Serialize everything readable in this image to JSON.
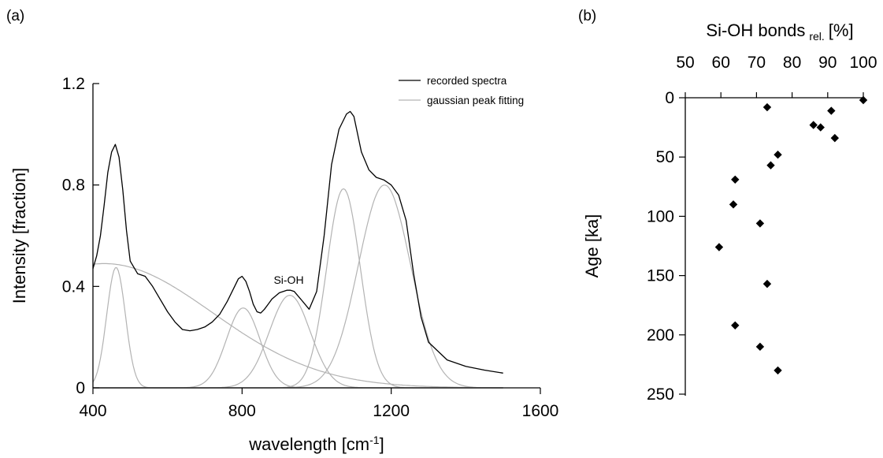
{
  "chart_data": [
    {
      "panel": "(a)",
      "type": "line",
      "xlabel": "wavelength [cm",
      "xlabel_sup": "-1",
      "xlabel_end": "]",
      "ylabel": "Intensity [fraction]",
      "xlim": [
        400,
        1600
      ],
      "ylim": [
        0,
        1.2
      ],
      "xticks": [
        400,
        800,
        1200,
        1600
      ],
      "yticks": [
        0,
        0.4,
        0.8,
        1.2
      ],
      "ytick_labels": [
        "0",
        "0.4",
        "0.8",
        "1.2"
      ],
      "legend_position": "top-right",
      "legend": [
        {
          "label": "recorded spectra",
          "color": "#000000"
        },
        {
          "label": "gaussian peak fitting",
          "color": "#b3b3b3"
        }
      ],
      "annotation": {
        "text": "Si-OH",
        "x": 925,
        "y": 0.41
      },
      "series": [
        {
          "name": "recorded spectra",
          "color": "#000000",
          "x": [
            400,
            410,
            420,
            430,
            440,
            450,
            460,
            470,
            480,
            490,
            500,
            520,
            540,
            560,
            580,
            600,
            620,
            640,
            660,
            680,
            700,
            720,
            740,
            760,
            780,
            790,
            800,
            810,
            820,
            830,
            840,
            850,
            860,
            870,
            880,
            900,
            920,
            930,
            940,
            960,
            980,
            1000,
            1020,
            1040,
            1060,
            1080,
            1090,
            1100,
            1120,
            1140,
            1160,
            1180,
            1200,
            1220,
            1240,
            1260,
            1280,
            1300,
            1350,
            1400,
            1450,
            1500
          ],
          "y": [
            0.47,
            0.52,
            0.6,
            0.72,
            0.85,
            0.93,
            0.96,
            0.91,
            0.78,
            0.62,
            0.5,
            0.45,
            0.44,
            0.4,
            0.35,
            0.3,
            0.26,
            0.23,
            0.225,
            0.23,
            0.24,
            0.26,
            0.29,
            0.34,
            0.4,
            0.43,
            0.44,
            0.42,
            0.38,
            0.33,
            0.3,
            0.295,
            0.31,
            0.33,
            0.35,
            0.375,
            0.385,
            0.385,
            0.38,
            0.345,
            0.31,
            0.38,
            0.6,
            0.88,
            1.02,
            1.08,
            1.09,
            1.07,
            0.93,
            0.86,
            0.83,
            0.82,
            0.8,
            0.76,
            0.66,
            0.45,
            0.28,
            0.18,
            0.11,
            0.085,
            0.07,
            0.058
          ]
        },
        {
          "name": "",
          "color": "#b3b3b3",
          "gaussian": {
            "center": 430,
            "amplitude": 0.49,
            "sigma": 290
          }
        },
        {
          "name": "",
          "color": "#b3b3b3",
          "gaussian": {
            "center": 462,
            "amplitude": 0.475,
            "sigma": 25
          }
        },
        {
          "name": "",
          "color": "#b3b3b3",
          "gaussian": {
            "center": 803,
            "amplitude": 0.315,
            "sigma": 45
          }
        },
        {
          "name": "",
          "color": "#b3b3b3",
          "gaussian": {
            "center": 928,
            "amplitude": 0.365,
            "sigma": 55
          }
        },
        {
          "name": "",
          "color": "#b3b3b3",
          "gaussian": {
            "center": 1072,
            "amplitude": 0.785,
            "sigma": 45
          }
        },
        {
          "name": "",
          "color": "#b3b3b3",
          "gaussian": {
            "center": 1182,
            "amplitude": 0.8,
            "sigma": 70
          }
        }
      ]
    },
    {
      "panel": "(b)",
      "type": "scatter",
      "xlabel": "Si-OH bonds",
      "xlabel_sub": "rel.",
      "xlabel_end": "[%]",
      "ylabel": "Age [ka]",
      "xlim": [
        50,
        100
      ],
      "ylim": [
        0,
        250
      ],
      "y_inverted": true,
      "xticks": [
        50,
        60,
        70,
        80,
        90,
        100
      ],
      "yticks": [
        0,
        50,
        100,
        150,
        200,
        250
      ],
      "marker": "diamond",
      "color": "#000000",
      "points": [
        {
          "x": 100,
          "y": 2
        },
        {
          "x": 73,
          "y": 8
        },
        {
          "x": 91,
          "y": 11
        },
        {
          "x": 86,
          "y": 23
        },
        {
          "x": 88,
          "y": 25
        },
        {
          "x": 92,
          "y": 34
        },
        {
          "x": 76,
          "y": 48
        },
        {
          "x": 74,
          "y": 57
        },
        {
          "x": 64,
          "y": 69
        },
        {
          "x": 63.5,
          "y": 90
        },
        {
          "x": 71,
          "y": 106
        },
        {
          "x": 59.5,
          "y": 126
        },
        {
          "x": 73,
          "y": 157
        },
        {
          "x": 64,
          "y": 192
        },
        {
          "x": 71,
          "y": 210
        },
        {
          "x": 76,
          "y": 230
        }
      ]
    }
  ]
}
